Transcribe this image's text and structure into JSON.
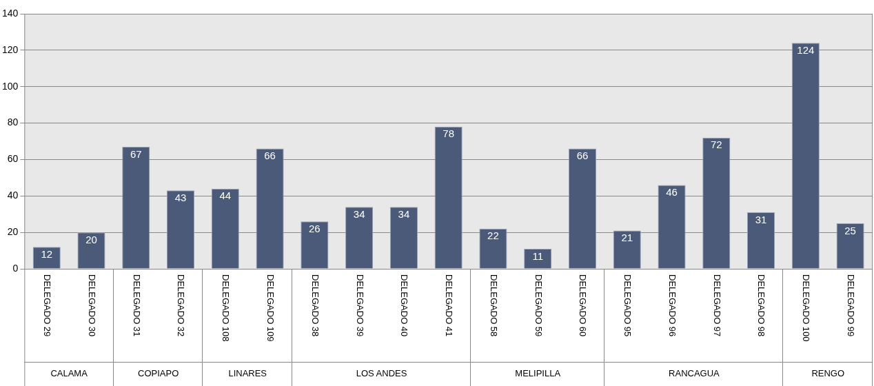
{
  "chart_data": {
    "type": "bar",
    "categories": [
      "DELEGADO 29",
      "DELEGADO 30",
      "DELEGADO 31",
      "DELEGADO 32",
      "DELEGADO 108",
      "DELEGADO 109",
      "DELEGADO 38",
      "DELEGADO 39",
      "DELEGADO 40",
      "DELEGADO 41",
      "DELEGADO 58",
      "DELEGADO 59",
      "DELEGADO 60",
      "DELEGADO 95",
      "DELEGADO 96",
      "DELEGADO 97",
      "DELEGADO 98",
      "DELEGADO 100",
      "DELEGADO 99"
    ],
    "values": [
      12,
      20,
      67,
      43,
      44,
      66,
      26,
      34,
      34,
      78,
      22,
      11,
      66,
      21,
      46,
      72,
      31,
      124,
      25
    ],
    "color": "#4a5a78",
    "ylim": [
      0,
      140
    ],
    "yticks": [
      0,
      20,
      40,
      60,
      80,
      100,
      120,
      140
    ],
    "grid": "y",
    "data_labels": true,
    "annotations": [
      "CALAMA",
      "COPIAPO",
      "LINARES",
      "LOS ANDES",
      "MELIPILLA",
      "RANCAGUA",
      "RENGO"
    ]
  }
}
